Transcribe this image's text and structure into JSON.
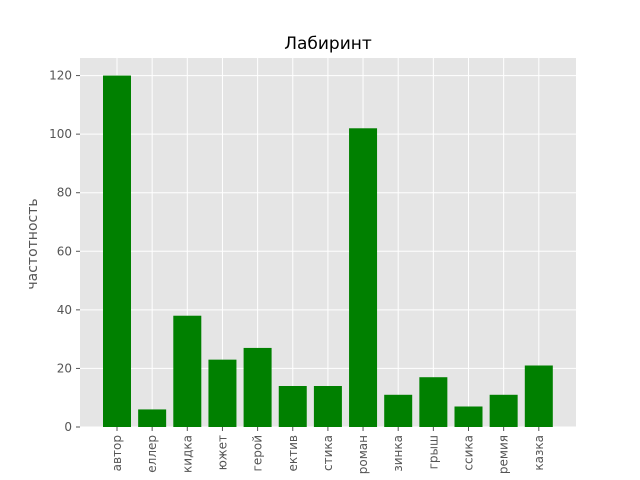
{
  "chart_data": {
    "type": "bar",
    "title": "Лабиринт",
    "xlabel": "",
    "ylabel": "частотность",
    "categories": [
      "автор",
      "еллер",
      "кидка",
      "южет",
      "герой",
      "ектив",
      "стика",
      "роман",
      "зинка",
      "грыш",
      "ссика",
      "ремия",
      "казка"
    ],
    "values": [
      120,
      6,
      38,
      23,
      27,
      14,
      14,
      102,
      11,
      17,
      7,
      11,
      21
    ],
    "ylim": [
      0,
      126
    ],
    "yticks": [
      0,
      20,
      40,
      60,
      80,
      100,
      120
    ],
    "grid": true,
    "bar_color": "#008000",
    "background_color": "#E5E5E5",
    "grid_color": "#FFFFFF"
  }
}
